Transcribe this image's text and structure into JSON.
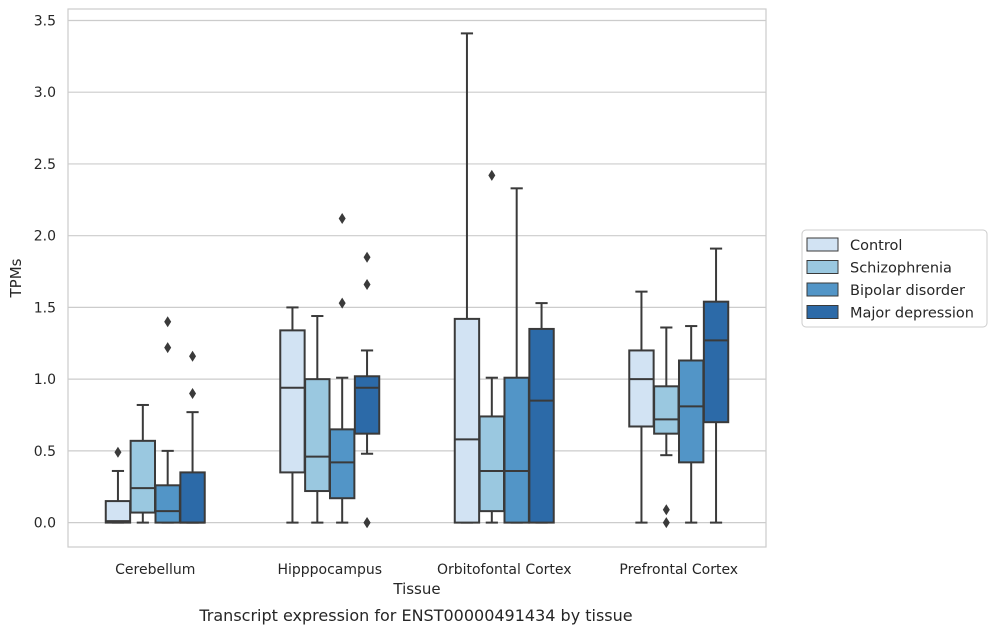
{
  "caption": "Transcript expression for ENST00000491434 by tissue",
  "chart_data": {
    "type": "box",
    "xlabel": "Tissue",
    "ylabel": "TPMs",
    "ylim": [
      -0.17,
      3.58
    ],
    "yticks": [
      0.0,
      0.5,
      1.0,
      1.5,
      2.0,
      2.5,
      3.0,
      3.5
    ],
    "ytick_labels": [
      "0.0",
      "0.5",
      "1.0",
      "1.5",
      "2.0",
      "2.5",
      "3.0",
      "3.5"
    ],
    "grid": "horizontal",
    "legend_position": "right",
    "categories": [
      "Cerebellum",
      "Hipppocampus",
      "Orbitofontal Cortex",
      "Prefrontal Cortex"
    ],
    "series": [
      {
        "name": "Control",
        "color": "#d2e3f3",
        "boxes": [
          {
            "whislo": 0.0,
            "q1": 0.0,
            "med": 0.01,
            "q3": 0.15,
            "whishi": 0.36,
            "fliers": [
              0.49
            ]
          },
          {
            "whislo": 0.0,
            "q1": 0.35,
            "med": 0.94,
            "q3": 1.34,
            "whishi": 1.5,
            "fliers": []
          },
          {
            "whislo": 0.0,
            "q1": 0.0,
            "med": 0.58,
            "q3": 1.42,
            "whishi": 3.41,
            "fliers": []
          },
          {
            "whislo": 0.0,
            "q1": 0.67,
            "med": 1.0,
            "q3": 1.2,
            "whishi": 1.61,
            "fliers": []
          }
        ]
      },
      {
        "name": "Schizophrenia",
        "color": "#9ac8e0",
        "boxes": [
          {
            "whislo": 0.0,
            "q1": 0.07,
            "med": 0.24,
            "q3": 0.57,
            "whishi": 0.82,
            "fliers": []
          },
          {
            "whislo": 0.0,
            "q1": 0.22,
            "med": 0.46,
            "q3": 1.0,
            "whishi": 1.44,
            "fliers": []
          },
          {
            "whislo": 0.0,
            "q1": 0.08,
            "med": 0.36,
            "q3": 0.74,
            "whishi": 1.01,
            "fliers": [
              2.42
            ]
          },
          {
            "whislo": 0.47,
            "q1": 0.62,
            "med": 0.72,
            "q3": 0.95,
            "whishi": 1.36,
            "fliers": [
              0.09,
              0.0
            ]
          }
        ]
      },
      {
        "name": "Bipolar disorder",
        "color": "#5295c7",
        "boxes": [
          {
            "whislo": 0.0,
            "q1": 0.0,
            "med": 0.08,
            "q3": 0.26,
            "whishi": 0.5,
            "fliers": [
              1.4,
              1.22
            ]
          },
          {
            "whislo": 0.0,
            "q1": 0.17,
            "med": 0.42,
            "q3": 0.65,
            "whishi": 1.01,
            "fliers": [
              2.12,
              1.53
            ]
          },
          {
            "whislo": 0.0,
            "q1": 0.0,
            "med": 0.36,
            "q3": 1.01,
            "whishi": 2.33,
            "fliers": []
          },
          {
            "whislo": 0.0,
            "q1": 0.42,
            "med": 0.81,
            "q3": 1.13,
            "whishi": 1.37,
            "fliers": []
          }
        ]
      },
      {
        "name": "Major depression",
        "color": "#2c6aa8",
        "boxes": [
          {
            "whislo": 0.0,
            "q1": 0.0,
            "med": 0.0,
            "q3": 0.35,
            "whishi": 0.77,
            "fliers": [
              1.16,
              0.9
            ]
          },
          {
            "whislo": 0.48,
            "q1": 0.62,
            "med": 0.94,
            "q3": 1.02,
            "whishi": 1.2,
            "fliers": [
              1.85,
              1.66,
              0.0,
              0.0
            ]
          },
          {
            "whislo": 0.0,
            "q1": 0.0,
            "med": 0.85,
            "q3": 1.35,
            "whishi": 1.53,
            "fliers": []
          },
          {
            "whislo": 0.0,
            "q1": 0.7,
            "med": 1.27,
            "q3": 1.54,
            "whishi": 1.91,
            "fliers": []
          }
        ]
      }
    ]
  }
}
